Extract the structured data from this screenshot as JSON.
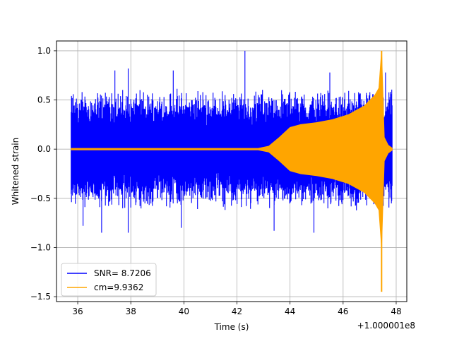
{
  "chart_data": {
    "type": "line",
    "title": "",
    "xlabel": "Time (s)",
    "ylabel": "Whitened strain",
    "x_offset_label": "+1.000001e8",
    "xlim": [
      35.2,
      48.4
    ],
    "ylim": [
      -1.55,
      1.1
    ],
    "xticks": [
      36,
      38,
      40,
      42,
      44,
      46,
      48
    ],
    "yticks": [
      -1.5,
      -1.0,
      -0.5,
      0.0,
      0.5,
      1.0
    ],
    "xtick_labels": [
      "36",
      "38",
      "40",
      "42",
      "44",
      "46",
      "48"
    ],
    "ytick_labels": [
      "−1.5",
      "−1.0",
      "−0.5",
      "0.0",
      "0.5",
      "1.0"
    ],
    "grid": true,
    "legend_position": "lower-left",
    "series": [
      {
        "name": "SNR= 8.7206",
        "color": "#0000ff",
        "style": "noise",
        "x_range": [
          35.75,
          47.85
        ],
        "typical_amplitude": 0.55,
        "peaks": [
          {
            "x": 36.2,
            "y": -0.78
          },
          {
            "x": 36.9,
            "y": -0.85
          },
          {
            "x": 37.4,
            "y": 0.8
          },
          {
            "x": 37.9,
            "y": 0.82
          },
          {
            "x": 37.9,
            "y": -0.85
          },
          {
            "x": 39.6,
            "y": 0.8
          },
          {
            "x": 39.9,
            "y": -0.8
          },
          {
            "x": 42.3,
            "y": 1.0
          },
          {
            "x": 43.4,
            "y": -0.83
          },
          {
            "x": 44.9,
            "y": -0.85
          },
          {
            "x": 45.5,
            "y": 0.78
          },
          {
            "x": 47.6,
            "y": 0.78
          }
        ]
      },
      {
        "name": "cm=9.9362",
        "color": "#ffa500",
        "style": "chirp",
        "x_range": [
          35.75,
          47.85
        ],
        "envelope": [
          {
            "x": 35.75,
            "y": 0.008
          },
          {
            "x": 42.8,
            "y": 0.008
          },
          {
            "x": 43.2,
            "y": 0.03
          },
          {
            "x": 43.6,
            "y": 0.12
          },
          {
            "x": 44.0,
            "y": 0.22
          },
          {
            "x": 44.4,
            "y": 0.25
          },
          {
            "x": 45.0,
            "y": 0.27
          },
          {
            "x": 45.6,
            "y": 0.3
          },
          {
            "x": 46.2,
            "y": 0.35
          },
          {
            "x": 46.8,
            "y": 0.44
          },
          {
            "x": 47.2,
            "y": 0.55
          },
          {
            "x": 47.35,
            "y": 0.62
          },
          {
            "x": 47.45,
            "y": 1.0
          },
          {
            "x": 47.55,
            "y": 0.12
          },
          {
            "x": 47.7,
            "y": 0.04
          },
          {
            "x": 47.85,
            "y": 0.01
          }
        ],
        "max": {
          "x": 47.45,
          "y": 1.0
        },
        "min": {
          "x": 47.45,
          "y": -1.45
        }
      }
    ]
  }
}
